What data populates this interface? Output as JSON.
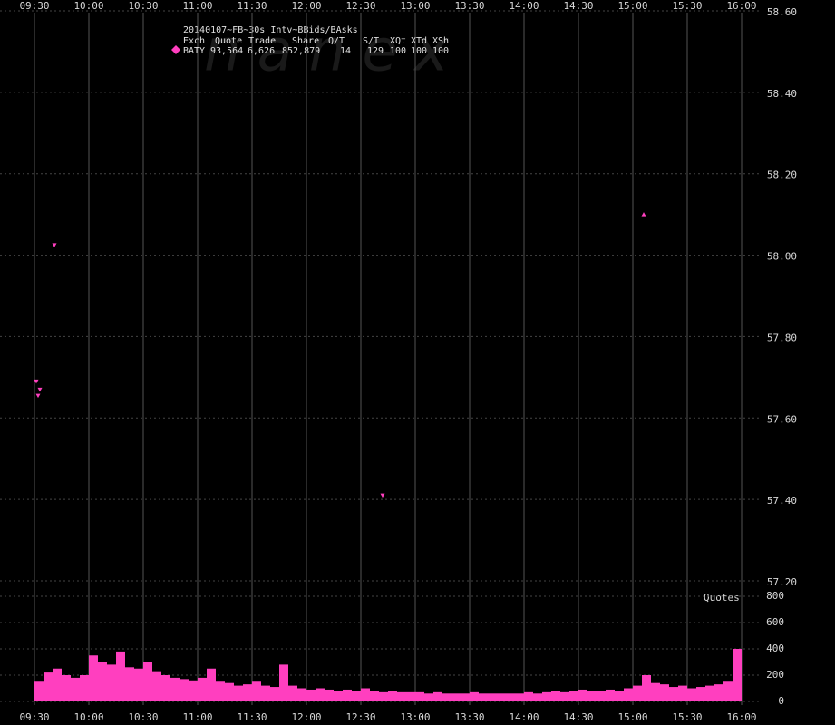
{
  "chart_data": [
    {
      "type": "scatter",
      "title": "20140107~FB~30s Intv~BBids/BAsks",
      "watermark": "nanex",
      "legend": {
        "header": [
          "Exch",
          "Quote",
          "Trade",
          "Share",
          "Q/T",
          "S/T",
          "XQt",
          "XTd",
          "XSh"
        ],
        "rows": [
          [
            "BATY",
            "93,564",
            "6,626",
            "852,879",
            "14",
            "129",
            "100",
            "100",
            "100"
          ]
        ]
      },
      "color": "#ff3fbf",
      "x": [
        "09:41",
        "09:31",
        "09:33",
        "09:32",
        "12:42",
        "15:06"
      ],
      "values": [
        58.025,
        57.69,
        57.67,
        57.655,
        57.41,
        58.1
      ],
      "markers": [
        "down",
        "down",
        "down",
        "down",
        "down",
        "up"
      ],
      "xlim": [
        "09:30",
        "16:00"
      ],
      "xticks": [
        "09:30",
        "10:00",
        "10:30",
        "11:00",
        "11:30",
        "12:00",
        "12:30",
        "13:00",
        "13:30",
        "14:00",
        "14:30",
        "15:00",
        "15:30",
        "16:00"
      ],
      "ylim": [
        57.2,
        58.6
      ],
      "yticks": [
        {
          "value": 57.2,
          "label": "57.20"
        },
        {
          "value": 57.4,
          "label": "57.40"
        },
        {
          "value": 57.6,
          "label": "57.60"
        },
        {
          "value": 57.8,
          "label": "57.80"
        },
        {
          "value": 58.0,
          "label": "58.00"
        },
        {
          "value": 58.2,
          "label": "58.20"
        },
        {
          "value": 58.4,
          "label": "58.40"
        },
        {
          "value": 58.6,
          "label": "58.60"
        }
      ],
      "grid": true
    },
    {
      "type": "bar",
      "title": "Quotes",
      "color": "#ff3fbf",
      "x": [
        "09:30",
        "09:35",
        "09:40",
        "09:45",
        "09:50",
        "09:55",
        "10:00",
        "10:05",
        "10:10",
        "10:15",
        "10:20",
        "10:25",
        "10:30",
        "10:35",
        "10:40",
        "10:45",
        "10:50",
        "10:55",
        "11:00",
        "11:05",
        "11:10",
        "11:15",
        "11:20",
        "11:25",
        "11:30",
        "11:35",
        "11:40",
        "11:45",
        "11:50",
        "11:55",
        "12:00",
        "12:05",
        "12:10",
        "12:15",
        "12:20",
        "12:25",
        "12:30",
        "12:35",
        "12:40",
        "12:45",
        "12:50",
        "12:55",
        "13:00",
        "13:05",
        "13:10",
        "13:15",
        "13:20",
        "13:25",
        "13:30",
        "13:35",
        "13:40",
        "13:45",
        "13:50",
        "13:55",
        "14:00",
        "14:05",
        "14:10",
        "14:15",
        "14:20",
        "14:25",
        "14:30",
        "14:35",
        "14:40",
        "14:45",
        "14:50",
        "14:55",
        "15:00",
        "15:05",
        "15:10",
        "15:15",
        "15:20",
        "15:25",
        "15:30",
        "15:35",
        "15:40",
        "15:45",
        "15:50",
        "15:55"
      ],
      "values": [
        150,
        220,
        250,
        200,
        180,
        200,
        350,
        300,
        280,
        380,
        260,
        250,
        300,
        230,
        200,
        180,
        170,
        160,
        180,
        250,
        150,
        140,
        120,
        130,
        150,
        120,
        110,
        280,
        120,
        100,
        90,
        100,
        90,
        80,
        90,
        80,
        100,
        80,
        70,
        80,
        70,
        70,
        70,
        60,
        70,
        60,
        60,
        60,
        70,
        60,
        60,
        60,
        60,
        60,
        70,
        60,
        70,
        80,
        70,
        80,
        90,
        80,
        80,
        90,
        80,
        100,
        120,
        200,
        140,
        130,
        110,
        120,
        100,
        110,
        120,
        130,
        150,
        400
      ],
      "ylim": [
        0,
        800
      ],
      "yticks": [
        0,
        200,
        400,
        600,
        800
      ],
      "grid": true
    }
  ]
}
